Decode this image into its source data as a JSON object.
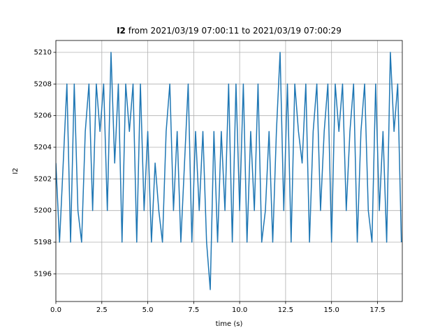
{
  "chart_data": {
    "type": "line",
    "title_series": "I2",
    "title": "from 2021/03/19 07:00:11 to 2021/03/19 07:00:29",
    "xlabel": "time (s)",
    "ylabel": "I2",
    "color": "#1f77b4",
    "grid": true,
    "xlim": [
      0,
      18.85
    ],
    "ylim": [
      5194.25,
      5210.75
    ],
    "xticks": [
      {
        "value": 0,
        "label": "0.0"
      },
      2.5,
      {
        "value": 5,
        "label": "5.0"
      },
      7.5,
      {
        "value": 10,
        "label": "10.0"
      },
      12.5,
      {
        "value": 15,
        "label": "15.0"
      },
      17.5
    ],
    "yticks": [
      5196,
      5198,
      5200,
      5202,
      5204,
      5206,
      5208,
      5210
    ],
    "x": [
      0,
      0.2,
      0.4,
      0.6,
      0.8,
      1,
      1.2,
      1.4,
      1.6,
      1.8,
      2,
      2.2,
      2.4,
      2.6,
      2.8,
      3,
      3.2,
      3.4,
      3.6,
      3.8,
      4,
      4.2,
      4.4,
      4.6,
      4.8,
      5,
      5.2,
      5.4,
      5.6,
      5.8,
      6,
      6.2,
      6.4,
      6.6,
      6.8,
      7,
      7.2,
      7.4,
      7.6,
      7.8,
      8,
      8.2,
      8.4,
      8.6,
      8.8,
      9,
      9.2,
      9.4,
      9.6,
      9.8,
      10,
      10.2,
      10.4,
      10.6,
      10.8,
      11,
      11.2,
      11.4,
      11.6,
      11.8,
      12,
      12.2,
      12.4,
      12.6,
      12.8,
      13,
      13.2,
      13.4,
      13.6,
      13.8,
      14,
      14.2,
      14.4,
      14.6,
      14.8,
      15,
      15.2,
      15.4,
      15.6,
      15.8,
      16,
      16.2,
      16.4,
      16.6,
      16.8,
      17,
      17.2,
      17.4,
      17.6,
      17.8,
      18,
      18.2,
      18.4,
      18.6,
      18.8
    ],
    "values": [
      5203,
      5198,
      5203,
      5208,
      5198,
      5208,
      5200,
      5198,
      5205,
      5208,
      5200,
      5208,
      5205,
      5208,
      5200,
      5210,
      5203,
      5208,
      5198,
      5208,
      5205,
      5208,
      5198,
      5208,
      5200,
      5205,
      5198,
      5203,
      5200,
      5198,
      5205,
      5208,
      5200,
      5205,
      5198,
      5203,
      5208,
      5198,
      5205,
      5200,
      5205,
      5198,
      5195,
      5205,
      5198,
      5205,
      5200,
      5208,
      5198,
      5208,
      5200,
      5208,
      5198,
      5205,
      5200,
      5208,
      5198,
      5200,
      5205,
      5198,
      5205,
      5210,
      5200,
      5208,
      5198,
      5208,
      5205,
      5203,
      5208,
      5198,
      5205,
      5208,
      5200,
      5205,
      5208,
      5198,
      5208,
      5205,
      5208,
      5200,
      5205,
      5208,
      5198,
      5205,
      5208,
      5200,
      5198,
      5208,
      5200,
      5205,
      5198,
      5210,
      5205,
      5208,
      5198
    ]
  }
}
